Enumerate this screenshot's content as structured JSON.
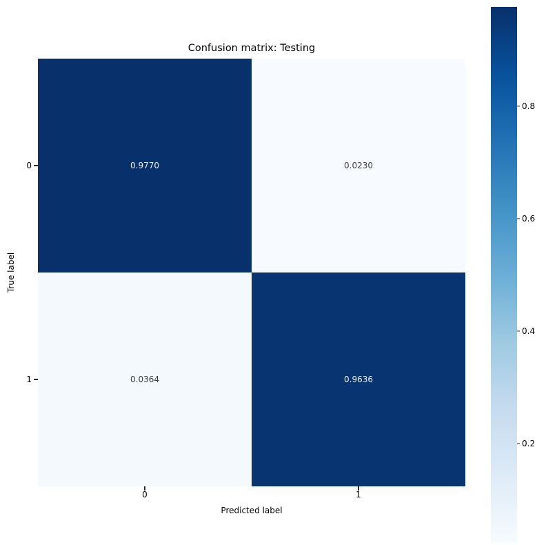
{
  "chart_data": {
    "type": "heatmap",
    "title": "Confusion matrix: Testing",
    "xlabel": "Predicted label",
    "ylabel": "True label",
    "x_tick_labels": [
      "0",
      "1"
    ],
    "y_tick_labels": [
      "0",
      "1"
    ],
    "values": [
      [
        0.977,
        0.023
      ],
      [
        0.0364,
        0.9636
      ]
    ],
    "cell_labels": [
      [
        "0.9770",
        "0.0230"
      ],
      [
        "0.0364",
        "0.9636"
      ]
    ],
    "colormap": {
      "name": "Blues",
      "stops": [
        "#f7fbff",
        "#deebf7",
        "#c6dbef",
        "#9ecae1",
        "#6baed6",
        "#4292c6",
        "#2171b5",
        "#08519c",
        "#08306b"
      ]
    },
    "colorbar": {
      "vmin": 0.023,
      "vmax": 0.977,
      "ticks": [
        "0.2",
        "0.4",
        "0.6",
        "0.8"
      ],
      "position": "right"
    },
    "annot_text_colors": {
      "dark_cells": "#f2f2f2",
      "light_cells": "#3b3b3b"
    },
    "background": "#ffffff"
  }
}
